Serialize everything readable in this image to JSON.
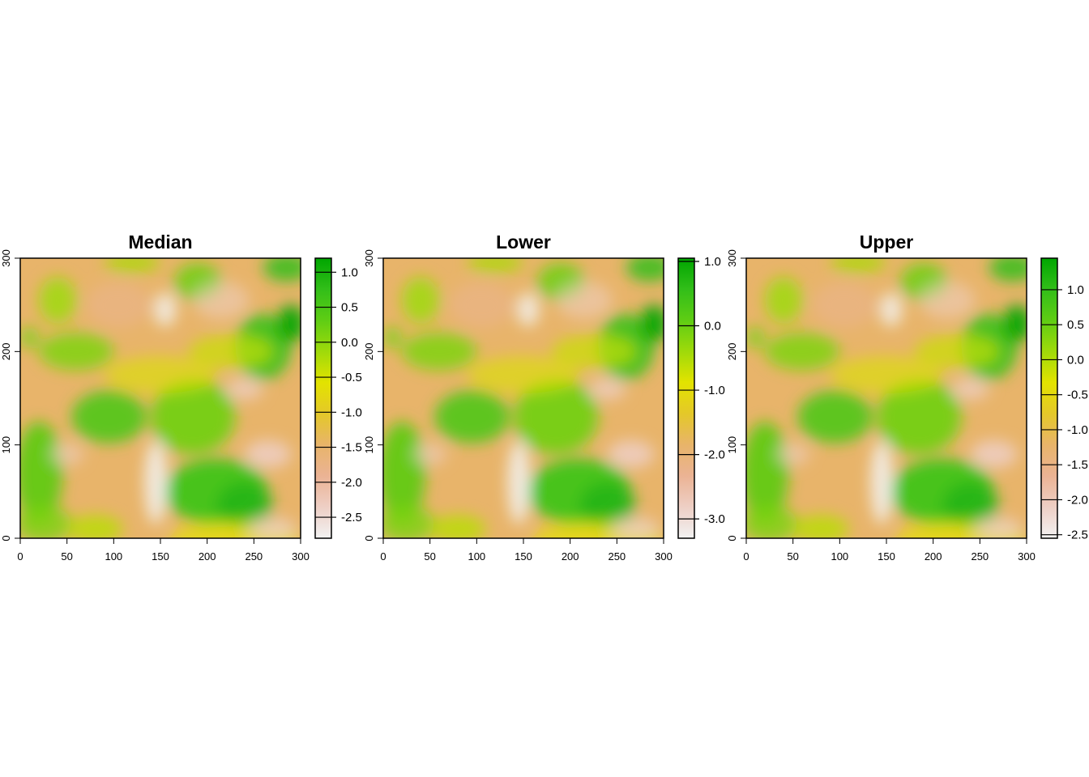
{
  "figure": {
    "background": "#ffffff"
  },
  "chart_data": [
    {
      "type": "heatmap",
      "title": "Median",
      "xlabel": "",
      "ylabel": "",
      "xlim": [
        0,
        300
      ],
      "ylim": [
        0,
        300
      ],
      "x_ticks": [
        0,
        50,
        100,
        150,
        200,
        250,
        300
      ],
      "y_ticks": [
        0,
        100,
        200,
        300
      ],
      "value_range": [
        -2.8,
        1.2
      ],
      "legend_position": "right",
      "legend_ticks": [
        {
          "value": 1.0,
          "label": "1.0"
        },
        {
          "value": 0.5,
          "label": "0.5"
        },
        {
          "value": 0.0,
          "label": "0.0"
        },
        {
          "value": -0.5,
          "label": "-0.5"
        },
        {
          "value": -1.0,
          "label": "-1.0"
        },
        {
          "value": -1.5,
          "label": "-1.5"
        },
        {
          "value": -2.0,
          "label": "-2.0"
        },
        {
          "value": -2.5,
          "label": "-2.5"
        }
      ],
      "color_scale": [
        "#f2f2f2",
        "#eecfc5",
        "#ebb394",
        "#e8b46a",
        "#e4c829",
        "#e3e300",
        "#9fda0a",
        "#5fcd14",
        "#32be19",
        "#00a600"
      ]
    },
    {
      "type": "heatmap",
      "title": "Lower",
      "xlabel": "",
      "ylabel": "",
      "xlim": [
        0,
        300
      ],
      "ylim": [
        0,
        300
      ],
      "x_ticks": [
        0,
        50,
        100,
        150,
        200,
        250,
        300
      ],
      "y_ticks": [
        0,
        100,
        200,
        300
      ],
      "value_range": [
        -3.3,
        1.05
      ],
      "legend_position": "right",
      "legend_ticks": [
        {
          "value": 1.0,
          "label": "1.0"
        },
        {
          "value": 0.0,
          "label": "0.0"
        },
        {
          "value": -1.0,
          "label": "-1.0"
        },
        {
          "value": -2.0,
          "label": "-2.0"
        },
        {
          "value": -3.0,
          "label": "-3.0"
        }
      ],
      "color_scale": [
        "#f2f2f2",
        "#eecfc5",
        "#ebb394",
        "#e8b46a",
        "#e4c829",
        "#e3e300",
        "#9fda0a",
        "#5fcd14",
        "#32be19",
        "#00a600"
      ]
    },
    {
      "type": "heatmap",
      "title": "Upper",
      "xlabel": "",
      "ylabel": "",
      "xlim": [
        0,
        300
      ],
      "ylim": [
        0,
        300
      ],
      "x_ticks": [
        0,
        50,
        100,
        150,
        200,
        250,
        300
      ],
      "y_ticks": [
        0,
        100,
        200,
        300
      ],
      "value_range": [
        -2.55,
        1.45
      ],
      "legend_position": "right",
      "legend_ticks": [
        {
          "value": 1.0,
          "label": "1.0"
        },
        {
          "value": 0.5,
          "label": "0.5"
        },
        {
          "value": 0.0,
          "label": "0.0"
        },
        {
          "value": -0.5,
          "label": "-0.5"
        },
        {
          "value": -1.0,
          "label": "-1.0"
        },
        {
          "value": -1.5,
          "label": "-1.5"
        },
        {
          "value": -2.0,
          "label": "-2.0"
        },
        {
          "value": -2.5,
          "label": "-2.5"
        }
      ],
      "color_scale": [
        "#f2f2f2",
        "#eecfc5",
        "#ebb394",
        "#e8b46a",
        "#e4c829",
        "#e3e300",
        "#9fda0a",
        "#5fcd14",
        "#32be19",
        "#00a600"
      ]
    }
  ]
}
